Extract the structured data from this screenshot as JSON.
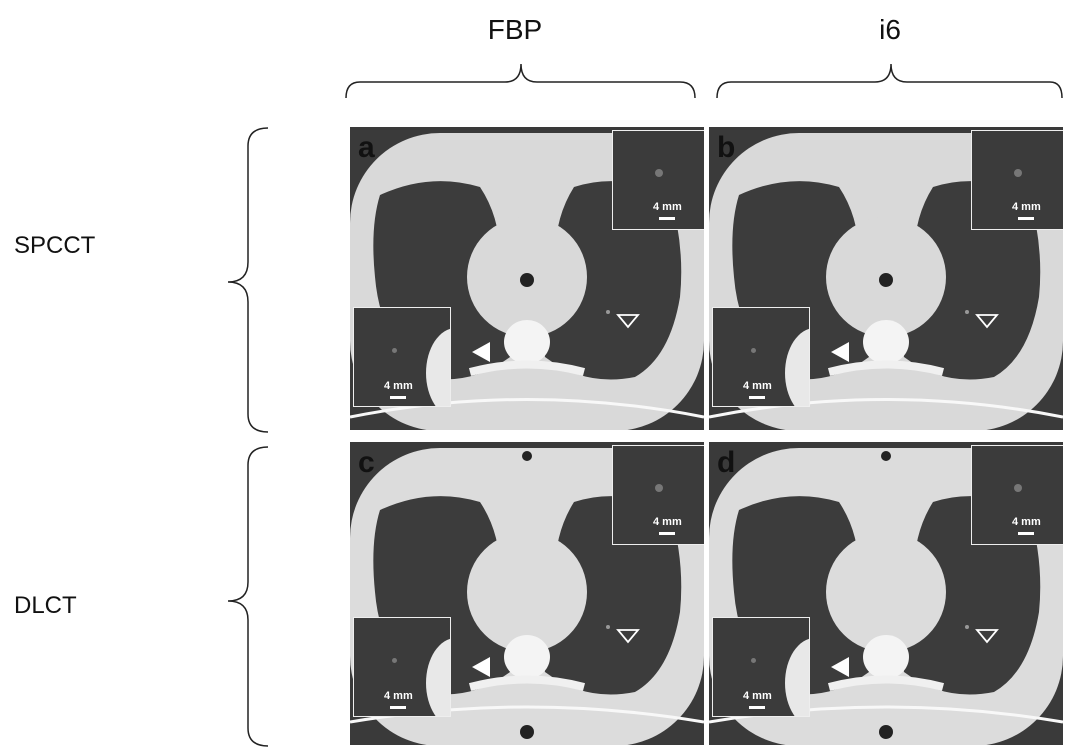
{
  "columns": {
    "left": "FBP",
    "right": "i6"
  },
  "rows": {
    "top": "SPCCT",
    "bottom": "DLCT"
  },
  "panels": [
    {
      "letter": "a",
      "scale": "4 mm"
    },
    {
      "letter": "b",
      "scale": "4 mm"
    },
    {
      "letter": "c",
      "scale": "4 mm"
    },
    {
      "letter": "d",
      "scale": "4 mm"
    }
  ],
  "colors": {
    "background": "#3a3a3a",
    "tissue": "#d9d9d9",
    "lung": "#3c3c3c",
    "border": "#ffffff"
  }
}
